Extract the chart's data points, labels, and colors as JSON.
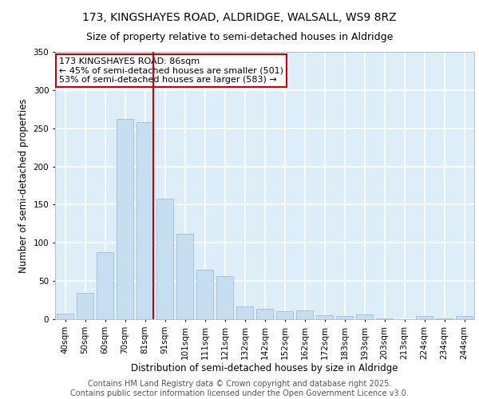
{
  "title1": "173, KINGSHAYES ROAD, ALDRIDGE, WALSALL, WS9 8RZ",
  "title2": "Size of property relative to semi-detached houses in Aldridge",
  "xlabel": "Distribution of semi-detached houses by size in Aldridge",
  "ylabel": "Number of semi-detached properties",
  "footer1": "Contains HM Land Registry data © Crown copyright and database right 2025.",
  "footer2": "Contains public sector information licensed under the Open Government Licence v3.0.",
  "categories": [
    "40sqm",
    "50sqm",
    "60sqm",
    "70sqm",
    "81sqm",
    "91sqm",
    "101sqm",
    "111sqm",
    "121sqm",
    "132sqm",
    "142sqm",
    "152sqm",
    "162sqm",
    "172sqm",
    "183sqm",
    "193sqm",
    "203sqm",
    "213sqm",
    "224sqm",
    "234sqm",
    "244sqm"
  ],
  "values": [
    7,
    35,
    88,
    262,
    258,
    158,
    112,
    65,
    56,
    17,
    14,
    10,
    11,
    5,
    4,
    6,
    1,
    0,
    4,
    1,
    4
  ],
  "bar_color": "#c5dff0",
  "bar_edge_color": "#a0bcd8",
  "red_line_index": 4,
  "annotation_title": "173 KINGSHAYES ROAD: 86sqm",
  "annotation_smaller": "← 45% of semi-detached houses are smaller (501)",
  "annotation_larger": "53% of semi-detached houses are larger (583) →",
  "annotation_box_color": "#ffffff",
  "annotation_box_edge": "#cc0000",
  "ylim": [
    0,
    350
  ],
  "yticks": [
    0,
    50,
    100,
    150,
    200,
    250,
    300,
    350
  ],
  "background_color": "#ddeef8",
  "grid_color": "#ffffff",
  "title_fontsize": 10,
  "subtitle_fontsize": 9,
  "axis_label_fontsize": 8.5,
  "tick_fontsize": 7.5,
  "footer_fontsize": 7,
  "annotation_fontsize": 8
}
